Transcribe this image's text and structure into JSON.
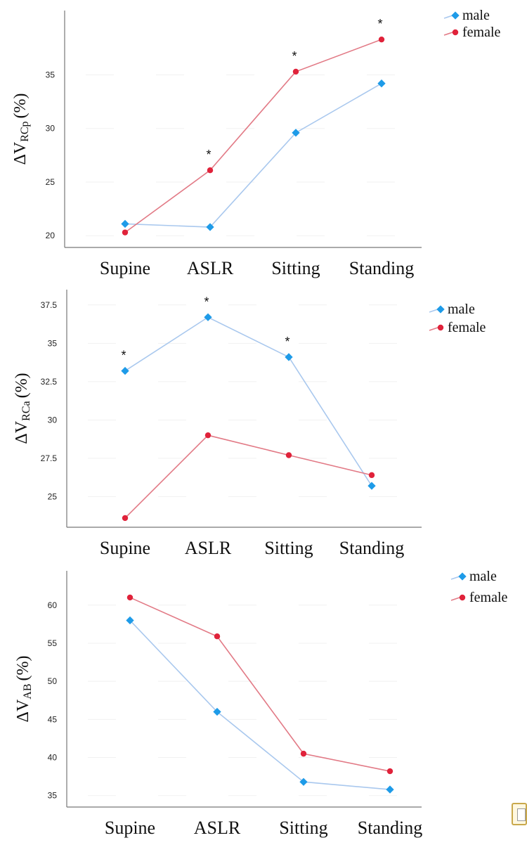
{
  "colors": {
    "male": "#1e9be8",
    "female": "#e0223a",
    "male_line": "#a9c8ee",
    "female_line": "#e27a86"
  },
  "legend_icons": {
    "male": "diamond-marker",
    "female": "circle-marker"
  },
  "chart_data": [
    {
      "type": "line",
      "title": "",
      "ylabel_main": "ΔV",
      "ylabel_sub": "RCp",
      "ylabel_unit": "(%)",
      "categories": [
        "Supine",
        "ASLR",
        "Sitting",
        "Standing"
      ],
      "ylim": [
        18.9,
        41
      ],
      "yticks": [
        20,
        25,
        30,
        35
      ],
      "series": [
        {
          "name": "male",
          "values": [
            21.1,
            20.8,
            29.6,
            34.2
          ]
        },
        {
          "name": "female",
          "values": [
            20.3,
            26.1,
            35.3,
            38.3
          ]
        }
      ],
      "significance": [
        "",
        "*",
        "*",
        "*"
      ],
      "legend": "top-right"
    },
    {
      "type": "line",
      "title": "",
      "ylabel_main": "ΔV",
      "ylabel_sub": "RCa",
      "ylabel_unit": "(%)",
      "categories": [
        "Supine",
        "ASLR",
        "Sitting",
        "Standing"
      ],
      "ylim": [
        23,
        38.5
      ],
      "yticks": [
        25,
        27.5,
        30,
        32.5,
        35,
        37.5
      ],
      "yticklabels": [
        "25",
        "27.5",
        "30",
        "32.5",
        "35",
        "37.5"
      ],
      "series": [
        {
          "name": "male",
          "values": [
            33.2,
            36.7,
            34.1,
            25.7
          ]
        },
        {
          "name": "female",
          "values": [
            23.6,
            29.0,
            27.7,
            26.4
          ]
        }
      ],
      "significance": [
        "*",
        "*",
        "*",
        ""
      ],
      "legend": "top-right"
    },
    {
      "type": "line",
      "title": "",
      "ylabel_main": "ΔV",
      "ylabel_sub": "AB",
      "ylabel_unit": "(%)",
      "categories": [
        "Supine",
        "ASLR",
        "Sitting",
        "Standing"
      ],
      "ylim": [
        33.5,
        64.5
      ],
      "yticks": [
        35,
        40,
        45,
        50,
        55,
        60
      ],
      "series": [
        {
          "name": "male",
          "values": [
            58.0,
            46.0,
            36.8,
            35.8
          ]
        },
        {
          "name": "female",
          "values": [
            61.0,
            55.9,
            40.5,
            38.2
          ]
        }
      ],
      "significance": [
        "",
        "",
        "",
        ""
      ],
      "legend": "top-right"
    }
  ]
}
